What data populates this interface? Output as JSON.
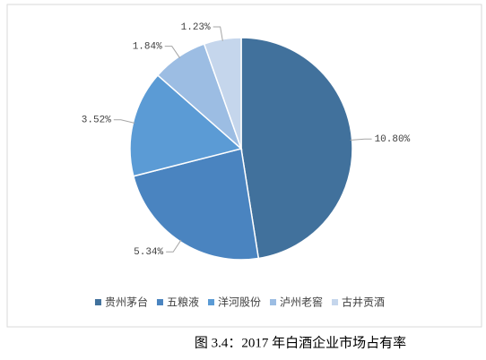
{
  "chart_data": {
    "type": "pie",
    "categories": [
      "贵州茅台",
      "五粮液",
      "洋河股份",
      "泸州老窖",
      "古井贡酒"
    ],
    "values": [
      10.8,
      5.34,
      3.52,
      1.84,
      1.23
    ],
    "value_labels": [
      "10.80%",
      "5.34%",
      "3.52%",
      "1.84%",
      "1.23%"
    ],
    "colors": [
      "#41719c",
      "#4a84c0",
      "#5b9bd5",
      "#9cbde3",
      "#c5d6ec"
    ],
    "legend": "bottom"
  },
  "caption": "图 3.4：2017 年白酒企业市场占有率"
}
